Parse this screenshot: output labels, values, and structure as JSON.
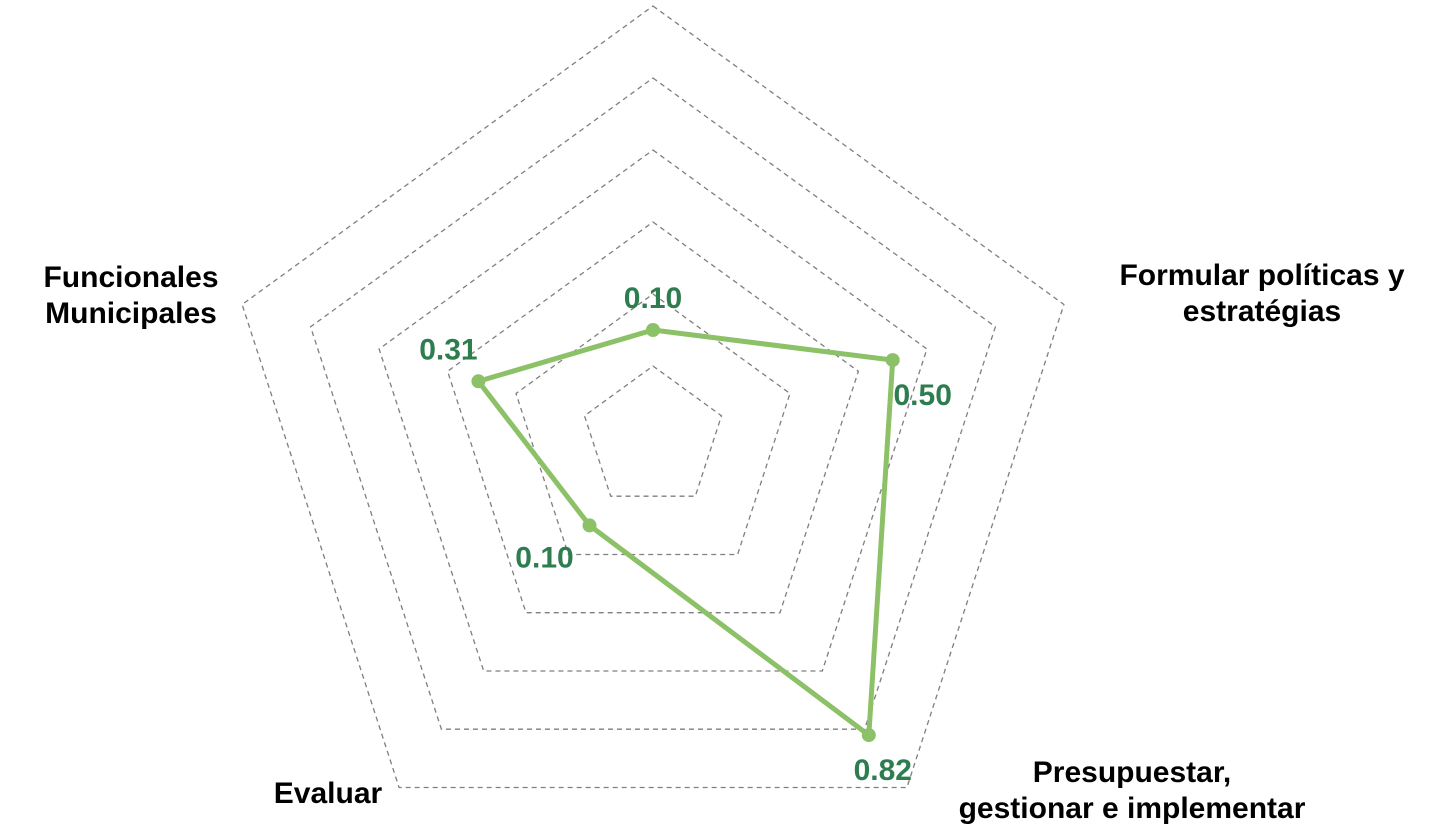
{
  "chart_data": {
    "type": "radar",
    "title": "",
    "axes": [
      "",
      "Formular políticas y estratégias",
      "Presupuestar, gestionar e implementar",
      "Evaluar",
      "Funcionales Municipales"
    ],
    "axis_label_lines": [
      [],
      [
        "Formular políticas y",
        "estratégias"
      ],
      [
        "Presupuestar,",
        "gestionar e implementar"
      ],
      [
        "Evaluar"
      ],
      [
        "Funcionales",
        "Municipales"
      ]
    ],
    "series": [
      {
        "values": [
          0.1,
          0.5,
          0.82,
          0.1,
          0.31
        ],
        "labels": [
          "0.10",
          "0.50",
          "0.82",
          "0.10",
          "0.31"
        ]
      }
    ],
    "rmin": -0.2,
    "rmax": 1.0,
    "grid_levels": [
      0.0,
      0.2,
      0.4,
      0.6,
      0.8,
      1.0
    ],
    "grid": true,
    "legend": "none"
  },
  "colors": {
    "series_line": "#8cc168",
    "value_label": "#2e7d4f",
    "grid": "#7f7f7f",
    "axis_label": "#000000"
  }
}
